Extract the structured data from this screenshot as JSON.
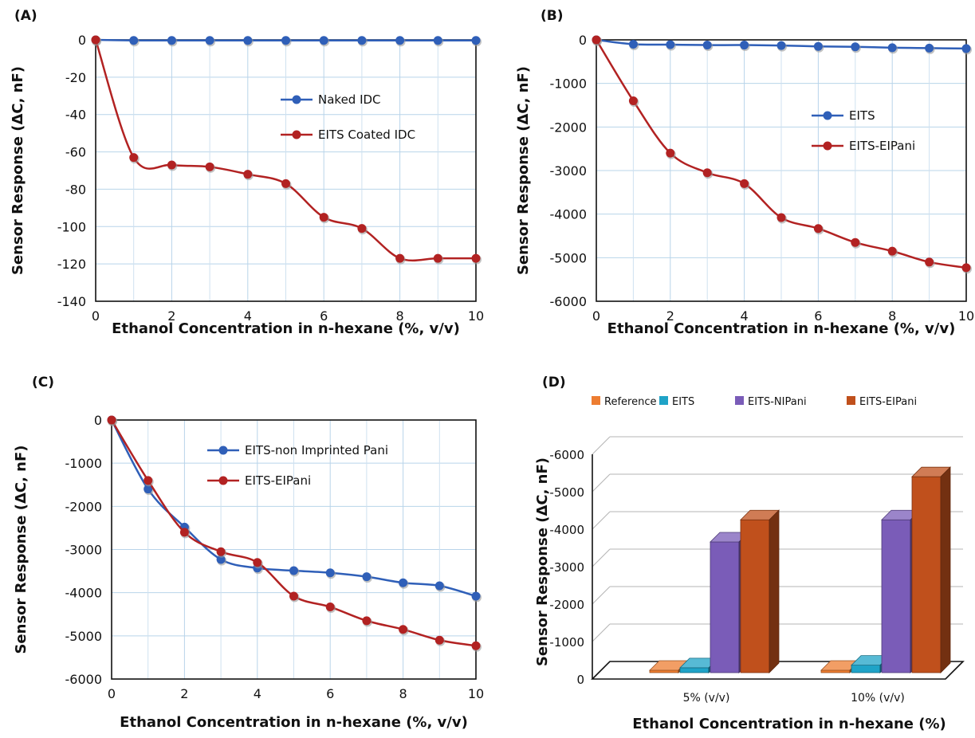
{
  "chart_data": [
    {
      "panel": "(A)",
      "type": "line",
      "xlabel": "Ethanol Concentration in n-hexane (%, v/v)",
      "ylabel": "Sensor Response (ΔC, nF)",
      "xlim": [
        0,
        10
      ],
      "ylim": [
        -140,
        0
      ],
      "xticks": [
        "0",
        "2",
        "4",
        "6",
        "8",
        "10"
      ],
      "yticks": [
        "0",
        "-20",
        "-40",
        "-60",
        "-80",
        "-100",
        "-120",
        "-140"
      ],
      "grid": true,
      "legend_position": "center-right",
      "x": [
        0,
        1,
        2,
        3,
        4,
        5,
        6,
        7,
        8,
        9,
        10
      ],
      "series": [
        {
          "name": "Naked IDC",
          "color": "#2f5fb8",
          "values": [
            0,
            -0.3,
            -0.3,
            -0.3,
            -0.3,
            -0.3,
            -0.3,
            -0.3,
            -0.3,
            -0.3,
            -0.3
          ]
        },
        {
          "name": "EITS Coated IDC",
          "color": "#b22222",
          "values": [
            0,
            -63,
            -67,
            -68,
            -72,
            -77,
            -95,
            -101,
            -117,
            -117,
            -117
          ]
        }
      ]
    },
    {
      "panel": "(B)",
      "type": "line",
      "xlabel": "Ethanol Concentration in n-hexane (%, v/v)",
      "ylabel": "Sensor Response (ΔC, nF)",
      "xlim": [
        0,
        10
      ],
      "ylim": [
        -6000,
        0
      ],
      "xticks": [
        "0",
        "2",
        "4",
        "6",
        "8",
        "10"
      ],
      "yticks": [
        "0",
        "-1000",
        "-2000",
        "-3000",
        "-4000",
        "-5000",
        "-6000"
      ],
      "grid": true,
      "legend_position": "center-right",
      "x": [
        0,
        1,
        2,
        3,
        4,
        5,
        6,
        7,
        8,
        9,
        10
      ],
      "series": [
        {
          "name": "EITS",
          "color": "#2f5fb8",
          "values": [
            0,
            -100,
            -110,
            -120,
            -120,
            -130,
            -150,
            -160,
            -180,
            -190,
            -200
          ]
        },
        {
          "name": "EITS-EIPani",
          "color": "#b22222",
          "values": [
            0,
            -1400,
            -2600,
            -3050,
            -3300,
            -4080,
            -4330,
            -4650,
            -4850,
            -5100,
            -5230
          ]
        }
      ]
    },
    {
      "panel": "(C)",
      "type": "line",
      "xlabel": "Ethanol Concentration in n-hexane (%, v/v)",
      "ylabel": "Sensor Response (ΔC, nF)",
      "xlim": [
        0,
        10
      ],
      "ylim": [
        -6000,
        0
      ],
      "xticks": [
        "0",
        "2",
        "4",
        "6",
        "8",
        "10"
      ],
      "yticks": [
        "0",
        "-1000",
        "-2000",
        "-3000",
        "-4000",
        "-5000",
        "-6000"
      ],
      "grid": true,
      "legend_position": "top-right",
      "x": [
        0,
        1,
        2,
        3,
        4,
        5,
        6,
        7,
        8,
        9,
        10
      ],
      "series": [
        {
          "name": "EITS-non Imprinted Pani",
          "color": "#2f5fb8",
          "values": [
            0,
            -1600,
            -2480,
            -3230,
            -3430,
            -3490,
            -3540,
            -3630,
            -3770,
            -3840,
            -4080
          ]
        },
        {
          "name": "EITS-EIPani",
          "color": "#b22222",
          "values": [
            0,
            -1400,
            -2600,
            -3050,
            -3300,
            -4080,
            -4330,
            -4650,
            -4850,
            -5100,
            -5230
          ]
        }
      ]
    },
    {
      "panel": "(D)",
      "type": "bar",
      "xlabel": "Ethanol Concentration in n-hexane (%)",
      "ylabel": "Sensor Response (ΔC, nF)",
      "ylim": [
        0,
        -6000
      ],
      "yticks": [
        "0",
        "-1000",
        "-2000",
        "-3000",
        "-4000",
        "-5000",
        "-6000"
      ],
      "grid": true,
      "legend_position": "top",
      "categories": [
        "5% (v/v)",
        "10% (v/v)"
      ],
      "series": [
        {
          "name": "Reference",
          "color": "#ed7d31",
          "values": [
            0,
            0
          ]
        },
        {
          "name": "EITS",
          "color": "#1fa3c7",
          "values": [
            -130,
            -200
          ]
        },
        {
          "name": "EITS-NIPani",
          "color": "#7a5cb8",
          "values": [
            -3490,
            -4080
          ]
        },
        {
          "name": "EITS-EIPani",
          "color": "#c0501c",
          "values": [
            -4080,
            -5230
          ]
        }
      ]
    }
  ]
}
